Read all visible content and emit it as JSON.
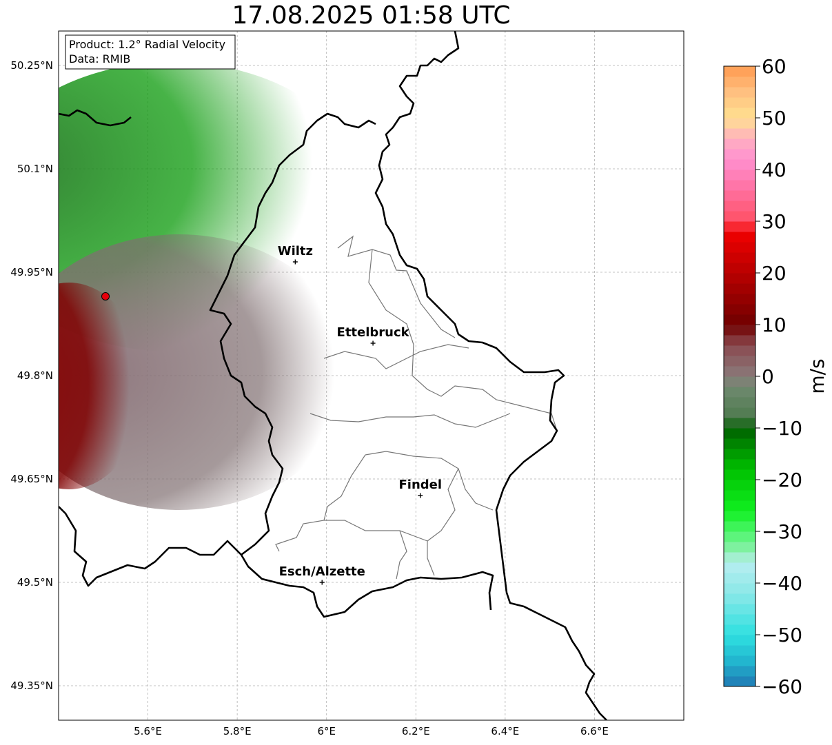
{
  "title": "17.08.2025 01:58 UTC",
  "info": {
    "product": "Product: 1.2° Radial Velocity",
    "data": "Data: RMIB"
  },
  "map": {
    "lon_range": [
      5.4,
      6.8
    ],
    "lat_range": [
      49.3,
      50.3
    ],
    "lon_ticks": [
      {
        "value": 5.6,
        "label": "5.6°E"
      },
      {
        "value": 5.8,
        "label": "5.8°E"
      },
      {
        "value": 6.0,
        "label": "6°E"
      },
      {
        "value": 6.2,
        "label": "6.2°E"
      },
      {
        "value": 6.4,
        "label": "6.4°E"
      },
      {
        "value": 6.6,
        "label": "6.6°E"
      }
    ],
    "lat_ticks": [
      {
        "value": 50.25,
        "label": "50.25°N"
      },
      {
        "value": 50.1,
        "label": "50.1°N"
      },
      {
        "value": 49.95,
        "label": "49.95°N"
      },
      {
        "value": 49.8,
        "label": "49.8°N"
      },
      {
        "value": 49.65,
        "label": "49.65°N"
      },
      {
        "value": 49.5,
        "label": "49.5°N"
      },
      {
        "value": 49.35,
        "label": "49.35°N"
      }
    ],
    "grid": true,
    "radar_site": {
      "lon": 5.505,
      "lat": 49.915,
      "color": "#e8000b"
    },
    "cities": [
      {
        "name": "Wiltz",
        "lon": 5.93,
        "lat": 49.965
      },
      {
        "name": "Ettelbruck",
        "lon": 6.104,
        "lat": 49.847
      },
      {
        "name": "Findel",
        "lon": 6.21,
        "lat": 49.626
      },
      {
        "name": "Esch/Alzette",
        "lon": 5.99,
        "lat": 49.5
      }
    ]
  },
  "colorbar": {
    "label": "m/s",
    "min": -60,
    "max": 60,
    "ticks": [
      {
        "value": 60,
        "label": "60"
      },
      {
        "value": 50,
        "label": "50"
      },
      {
        "value": 40,
        "label": "40"
      },
      {
        "value": 30,
        "label": "30"
      },
      {
        "value": 20,
        "label": "20"
      },
      {
        "value": 10,
        "label": "10"
      },
      {
        "value": 0,
        "label": "0"
      },
      {
        "value": -10,
        "label": "−10"
      },
      {
        "value": -20,
        "label": "−20"
      },
      {
        "value": -30,
        "label": "−30"
      },
      {
        "value": -40,
        "label": "−40"
      },
      {
        "value": -50,
        "label": "−50"
      },
      {
        "value": -60,
        "label": "−60"
      }
    ],
    "color_stops": [
      {
        "value": -60,
        "color": "#1f77b4"
      },
      {
        "value": -55,
        "color": "#22b6cf"
      },
      {
        "value": -50,
        "color": "#2ee0e0"
      },
      {
        "value": -42,
        "color": "#8ae8e8"
      },
      {
        "value": -36,
        "color": "#b8eef0"
      },
      {
        "value": -34,
        "color": "#8ef0b0"
      },
      {
        "value": -30,
        "color": "#4cf56a"
      },
      {
        "value": -26,
        "color": "#10f020"
      },
      {
        "value": -18,
        "color": "#00c000"
      },
      {
        "value": -10,
        "color": "#006000"
      },
      {
        "value": -8,
        "color": "#4f7a4f"
      },
      {
        "value": -2,
        "color": "#6f8a6f"
      },
      {
        "value": 0,
        "color": "#8a7a7a"
      },
      {
        "value": 6,
        "color": "#8a4a50"
      },
      {
        "value": 10,
        "color": "#700000"
      },
      {
        "value": 20,
        "color": "#b80000"
      },
      {
        "value": 28,
        "color": "#f00000"
      },
      {
        "value": 30,
        "color": "#ff5064"
      },
      {
        "value": 36,
        "color": "#ff70a0"
      },
      {
        "value": 42,
        "color": "#ff90d0"
      },
      {
        "value": 46,
        "color": "#ffb0c0"
      },
      {
        "value": 50,
        "color": "#ffe090"
      },
      {
        "value": 55,
        "color": "#ffc080"
      },
      {
        "value": 60,
        "color": "#ff9a50"
      }
    ]
  }
}
